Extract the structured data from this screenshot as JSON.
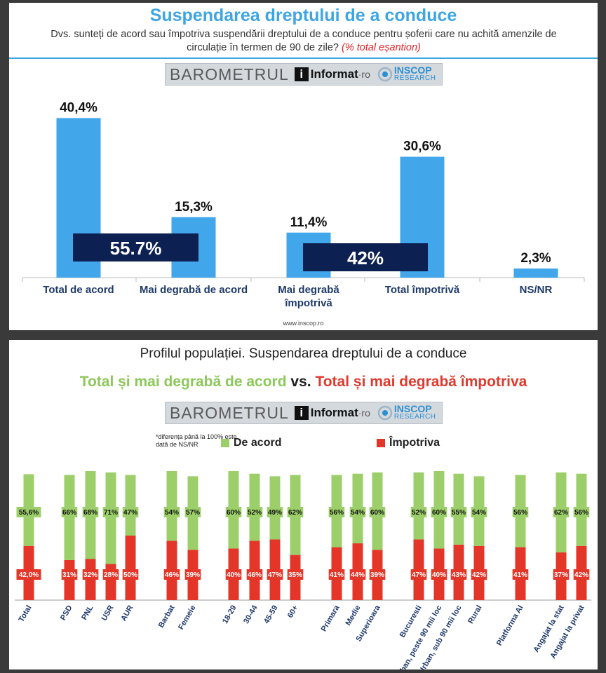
{
  "top": {
    "title": "Suspendarea dreptului de a conduce",
    "question": "Dvs. sunteți de acord sau împotriva suspendării dreptului de a conduce pentru șoferii care nu achită amenzile de circulație în termen de 90 de zile?",
    "question_note": "(% total eșantion)",
    "logo": {
      "barometru": "BAROMETRUL",
      "i": "i",
      "informat": "Informat",
      "ro": "·ro",
      "inscop": "INSCOP",
      "research": "RESEARCH"
    },
    "website": "www.inscop.ro",
    "bar_color": "#42a6ea",
    "box_color": "#0d2052"
  },
  "bottom": {
    "title": "Profilul populației. Suspendarea dreptului de a conduce",
    "subtitle_agree": "Total și mai degrabă de acord",
    "subtitle_vs": "vs.",
    "subtitle_against": "Total și mai degrabă împotriva",
    "note": "*diferența până la 100% este dată de NS/NR",
    "legend_agree": "De acord",
    "legend_against": "Împotriva",
    "agree_color": "#9ccf6a",
    "against_color": "#e33628"
  },
  "chart_data": [
    {
      "type": "bar",
      "categories": [
        "Total de acord",
        "Mai degrabă de acord",
        "Mai degrabă împotrivă",
        "Total împotrivă",
        "NS/NR"
      ],
      "values": [
        40.4,
        15.3,
        11.4,
        30.6,
        2.3
      ],
      "value_labels": [
        "40,4%",
        "15,3%",
        "11,4%",
        "30,6%",
        "2,3%"
      ],
      "annotations": [
        "55.7%",
        "42%"
      ],
      "ylim": [
        0,
        45
      ]
    },
    {
      "type": "bar",
      "stacked": true,
      "categories": [
        "Total",
        "PSD",
        "PNL",
        "USR",
        "AUR",
        "Barbat",
        "Femeie",
        "18-29",
        "30-44",
        "45-59",
        "60+",
        "Primara",
        "Medie",
        "Superioara",
        "Bucuresti",
        "Urban, peste 90 mii loc",
        "Urban, sub 90 mii loc",
        "Rural",
        "Platforma AI",
        "Angajat la stat",
        "Angajat la privat"
      ],
      "series": [
        {
          "name": "Împotriva",
          "values": [
            42.0,
            31,
            32,
            28,
            50,
            46,
            39,
            40,
            46,
            47,
            35,
            41,
            44,
            39,
            47,
            40,
            43,
            42,
            41,
            37,
            42
          ],
          "labels": [
            "42,0%",
            "31%",
            "32%",
            "28%",
            "50%",
            "46%",
            "39%",
            "40%",
            "46%",
            "47%",
            "35%",
            "41%",
            "44%",
            "39%",
            "47%",
            "40%",
            "43%",
            "42%",
            "41%",
            "37%",
            "42%"
          ]
        },
        {
          "name": "De acord",
          "values": [
            55.6,
            66,
            68,
            71,
            47,
            54,
            57,
            60,
            52,
            49,
            62,
            56,
            54,
            60,
            52,
            60,
            55,
            54,
            56,
            62,
            56
          ],
          "labels": [
            "55,6%",
            "66%",
            "68%",
            "71%",
            "47%",
            "54%",
            "57%",
            "60%",
            "52%",
            "49%",
            "62%",
            "56%",
            "54%",
            "60%",
            "52%",
            "60%",
            "55%",
            "54%",
            "56%",
            "62%",
            "56%"
          ]
        }
      ],
      "ylim": [
        0,
        100
      ]
    }
  ]
}
